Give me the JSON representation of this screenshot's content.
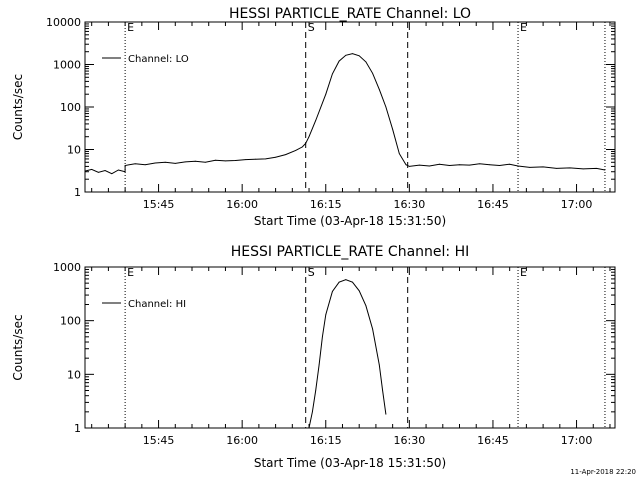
{
  "footer_timestamp": "11-Apr-2018 22:20",
  "chart_data": [
    {
      "type": "line",
      "title": "HESSI PARTICLE_RATE Channel: LO",
      "xlabel": "Start Time (03-Apr-18 15:31:50)",
      "ylabel": "Counts/sec",
      "yscale": "log",
      "ylim": [
        1,
        10000
      ],
      "ytick_values": [
        1,
        10,
        100,
        1000,
        10000
      ],
      "ytick_labels": [
        "1",
        "10",
        "100",
        "1000",
        "10000"
      ],
      "xlim": [
        15.53,
        17.115
      ],
      "xtick_values": [
        15.75,
        16.0,
        16.25,
        16.5,
        16.75,
        17.0
      ],
      "xtick_labels": [
        "15:45",
        "16:00",
        "16:15",
        "16:30",
        "16:45",
        "17:00"
      ],
      "vlines": [
        {
          "x": 15.65,
          "style": "dotted",
          "label": "E"
        },
        {
          "x": 16.19,
          "style": "dashed",
          "label": "S"
        },
        {
          "x": 16.495,
          "style": "dashed",
          "label": ""
        },
        {
          "x": 16.825,
          "style": "dotted",
          "label": "E"
        },
        {
          "x": 17.085,
          "style": "dotted",
          "label": ""
        }
      ],
      "legend": "Channel: LO",
      "series": [
        {
          "name": "Channel: LO",
          "x": [
            15.53,
            15.55,
            15.57,
            15.59,
            15.61,
            15.63,
            15.6499,
            15.65,
            15.68,
            15.71,
            15.74,
            15.77,
            15.8,
            15.83,
            15.86,
            15.89,
            15.92,
            15.95,
            15.98,
            16.01,
            16.04,
            16.07,
            16.1,
            16.13,
            16.16,
            16.18,
            16.19,
            16.2,
            16.22,
            16.25,
            16.27,
            16.29,
            16.31,
            16.33,
            16.35,
            16.37,
            16.39,
            16.41,
            16.43,
            16.45,
            16.47,
            16.49,
            16.5,
            16.53,
            16.56,
            16.59,
            16.62,
            16.65,
            16.68,
            16.71,
            16.74,
            16.77,
            16.8,
            16.825,
            16.86,
            16.9,
            16.94,
            16.98,
            17.02,
            17.06,
            17.085
          ],
          "y": [
            3.1,
            3.4,
            2.9,
            3.2,
            2.7,
            3.3,
            3.0,
            4.2,
            4.6,
            4.4,
            4.8,
            5.0,
            4.7,
            5.1,
            5.3,
            5.0,
            5.6,
            5.4,
            5.5,
            5.8,
            5.9,
            6.0,
            6.6,
            7.6,
            9.5,
            11.5,
            14,
            20,
            48,
            200,
            600,
            1200,
            1650,
            1800,
            1600,
            1150,
            620,
            260,
            100,
            30,
            8,
            4.4,
            4.0,
            4.3,
            4.1,
            4.5,
            4.2,
            4.4,
            4.3,
            4.6,
            4.4,
            4.2,
            4.5,
            4.1,
            3.8,
            3.9,
            3.6,
            3.7,
            3.5,
            3.6,
            3.3
          ]
        }
      ]
    },
    {
      "type": "line",
      "title": "HESSI PARTICLE_RATE Channel: HI",
      "xlabel": "Start Time (03-Apr-18 15:31:50)",
      "ylabel": "Counts/sec",
      "yscale": "log",
      "ylim": [
        1,
        1000
      ],
      "ytick_values": [
        1,
        10,
        100,
        1000
      ],
      "ytick_labels": [
        "1",
        "10",
        "100",
        "1000"
      ],
      "xlim": [
        15.53,
        17.115
      ],
      "xtick_values": [
        15.75,
        16.0,
        16.25,
        16.5,
        16.75,
        17.0
      ],
      "xtick_labels": [
        "15:45",
        "16:00",
        "16:15",
        "16:30",
        "16:45",
        "17:00"
      ],
      "vlines": [
        {
          "x": 15.65,
          "style": "dotted",
          "label": "E"
        },
        {
          "x": 16.19,
          "style": "dashed",
          "label": "S"
        },
        {
          "x": 16.495,
          "style": "dashed",
          "label": ""
        },
        {
          "x": 16.825,
          "style": "dotted",
          "label": "E"
        },
        {
          "x": 17.085,
          "style": "dotted",
          "label": ""
        }
      ],
      "legend": "Channel: HI",
      "series": [
        {
          "name": "Channel: HI",
          "x": [
            16.2,
            16.21,
            16.22,
            16.23,
            16.24,
            16.25,
            16.27,
            16.29,
            16.31,
            16.33,
            16.35,
            16.37,
            16.39,
            16.41,
            16.42,
            16.43
          ],
          "y": [
            1,
            2,
            5,
            15,
            50,
            130,
            350,
            520,
            580,
            520,
            360,
            190,
            70,
            15,
            5,
            1.8
          ]
        }
      ]
    }
  ]
}
